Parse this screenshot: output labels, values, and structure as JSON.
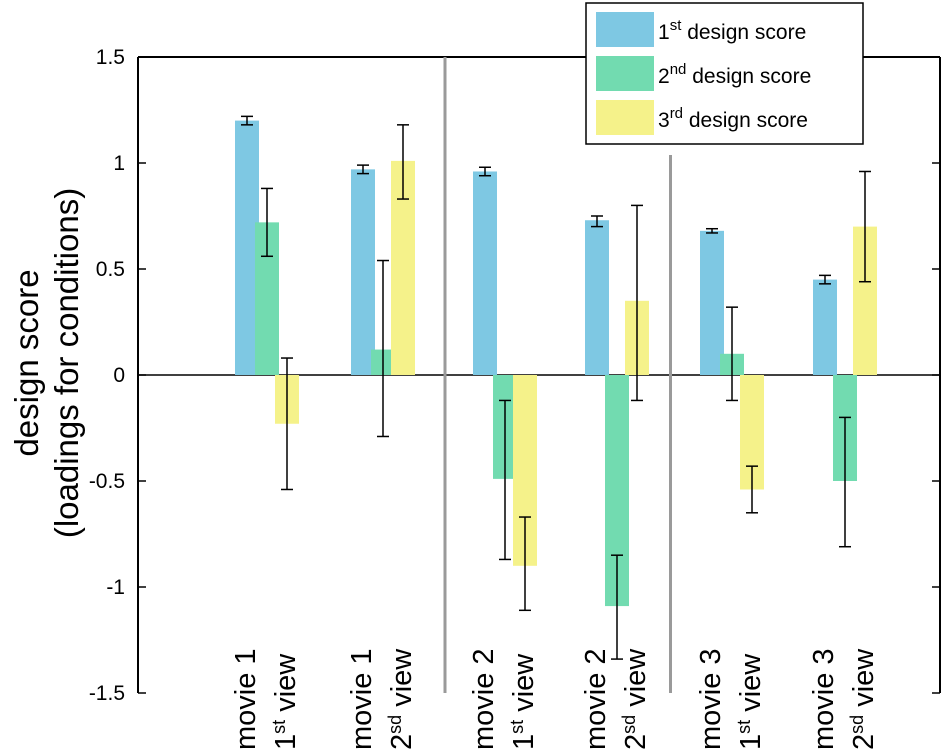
{
  "chart_data": {
    "type": "bar",
    "ylabel": [
      "design score",
      "(loadings for conditions)"
    ],
    "ylim": [
      -1.5,
      1.5
    ],
    "yticks": [
      1.5,
      1,
      0.5,
      0,
      -0.5,
      -1,
      -1.5
    ],
    "ytick_labels": [
      "1.5",
      "1",
      "0.5",
      "0",
      "-0.5",
      "-1",
      "-1.5"
    ],
    "categories": [
      {
        "line1": "movie 1",
        "line2_pre": "1",
        "line2_sup": "st",
        "line2_post": " view"
      },
      {
        "line1": "movie 1",
        "line2_pre": "2",
        "line2_sup": "sd",
        "line2_post": " view"
      },
      {
        "line1": "movie 2",
        "line2_pre": "1",
        "line2_sup": "st",
        "line2_post": " view"
      },
      {
        "line1": "movie 2",
        "line2_pre": "2",
        "line2_sup": "sd",
        "line2_post": " view"
      },
      {
        "line1": "movie 3",
        "line2_pre": "1",
        "line2_sup": "st",
        "line2_post": " view"
      },
      {
        "line1": "movie 3",
        "line2_pre": "2",
        "line2_sup": "sd",
        "line2_post": " view"
      }
    ],
    "series": [
      {
        "name": "1st design score",
        "label_pre": "1",
        "label_sup": "st",
        "label_post": " design score",
        "color": "#7ec8e3",
        "values": [
          1.2,
          0.97,
          0.96,
          0.73,
          0.68,
          0.45
        ],
        "err_low": [
          1.18,
          0.95,
          0.94,
          0.7,
          0.67,
          0.43
        ],
        "err_high": [
          1.22,
          0.99,
          0.98,
          0.75,
          0.69,
          0.47
        ]
      },
      {
        "name": "2nd design score",
        "label_pre": "2",
        "label_sup": "nd",
        "label_post": " design score",
        "color": "#72dbb0",
        "values": [
          0.72,
          0.12,
          -0.49,
          -1.09,
          0.1,
          -0.5
        ],
        "err_low": [
          0.56,
          -0.29,
          -0.87,
          -1.34,
          -0.12,
          -0.81
        ],
        "err_high": [
          0.88,
          0.54,
          -0.12,
          -0.85,
          0.32,
          -0.2
        ]
      },
      {
        "name": "3rd design score",
        "label_pre": "3",
        "label_sup": "rd",
        "label_post": " design score",
        "color": "#f5f28a",
        "values": [
          -0.23,
          1.01,
          -0.9,
          0.35,
          -0.54,
          0.7
        ],
        "err_low": [
          -0.54,
          0.83,
          -1.11,
          -0.12,
          -0.65,
          0.44
        ],
        "err_high": [
          0.08,
          1.18,
          -0.67,
          0.8,
          -0.43,
          0.96
        ]
      }
    ],
    "group_separators": "between movie groups (vertical gray lines)",
    "legend": "top-right"
  }
}
